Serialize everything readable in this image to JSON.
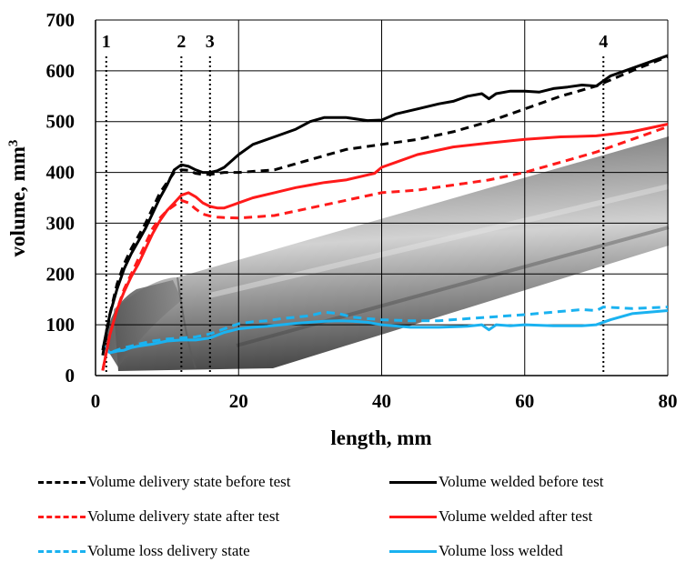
{
  "chart_data": {
    "type": "line",
    "title": "",
    "xlabel": "length, mm",
    "ylabel": "volume, mm",
    "ylabel_superscript": "3",
    "xlim": [
      0,
      80
    ],
    "ylim": [
      0,
      700
    ],
    "xticks": [
      "0",
      "20",
      "40",
      "60",
      "80"
    ],
    "yticks": [
      "0",
      "100",
      "200",
      "300",
      "400",
      "500",
      "600",
      "700"
    ],
    "grid": true,
    "markers": [
      {
        "label": "1",
        "x": 1.5
      },
      {
        "label": "2",
        "x": 12
      },
      {
        "label": "3",
        "x": 16
      },
      {
        "label": "4",
        "x": 71
      }
    ],
    "series": [
      {
        "name": "Volume delivery state before test",
        "color": "#000000",
        "style": "dashed",
        "x": [
          1,
          2,
          3,
          4,
          5,
          6,
          7,
          8,
          9,
          10,
          11,
          12,
          13,
          14,
          15,
          16,
          17,
          18,
          20,
          25,
          30,
          35,
          40,
          45,
          50,
          55,
          60,
          65,
          70,
          75,
          80
        ],
        "y": [
          40,
          120,
          180,
          220,
          250,
          275,
          300,
          330,
          360,
          380,
          400,
          405,
          404,
          398,
          396,
          396,
          398,
          400,
          400,
          405,
          425,
          445,
          455,
          465,
          480,
          500,
          525,
          550,
          570,
          600,
          628
        ]
      },
      {
        "name": "Volume welded before test",
        "color": "#000000",
        "style": "solid",
        "x": [
          1,
          2,
          3,
          4,
          5,
          6,
          7,
          8,
          9,
          10,
          11,
          12,
          13,
          14,
          15,
          16,
          17,
          18,
          20,
          22,
          25,
          28,
          30,
          32,
          35,
          38,
          40,
          42,
          45,
          48,
          50,
          52,
          54,
          55,
          56,
          58,
          60,
          62,
          64,
          66,
          68,
          70,
          72,
          74,
          76,
          78,
          80
        ],
        "y": [
          50,
          120,
          170,
          210,
          240,
          265,
          290,
          320,
          350,
          375,
          405,
          415,
          412,
          405,
          400,
          400,
          403,
          410,
          435,
          455,
          470,
          485,
          500,
          508,
          508,
          502,
          503,
          515,
          525,
          535,
          540,
          550,
          555,
          545,
          555,
          560,
          560,
          558,
          565,
          568,
          572,
          570,
          590,
          600,
          610,
          620,
          630
        ]
      },
      {
        "name": "Volume delivery state after test",
        "color": "#ff1a1a",
        "style": "dashed",
        "x": [
          1,
          2,
          3,
          4,
          5,
          6,
          7,
          8,
          9,
          10,
          11,
          12,
          13,
          14,
          15,
          16,
          17,
          18,
          20,
          25,
          30,
          35,
          40,
          45,
          50,
          55,
          60,
          65,
          70,
          75,
          80
        ],
        "y": [
          10,
          80,
          130,
          170,
          200,
          230,
          260,
          290,
          310,
          325,
          335,
          345,
          340,
          328,
          318,
          314,
          312,
          311,
          310,
          315,
          330,
          345,
          360,
          365,
          375,
          385,
          400,
          420,
          440,
          465,
          490
        ]
      },
      {
        "name": "Volume welded after test",
        "color": "#ff1a1a",
        "style": "solid",
        "x": [
          1,
          2,
          3,
          4,
          5,
          6,
          7,
          8,
          9,
          10,
          11,
          12,
          13,
          14,
          15,
          16,
          17,
          18,
          20,
          22,
          25,
          28,
          30,
          32,
          35,
          38,
          39,
          40,
          42,
          45,
          50,
          55,
          60,
          65,
          70,
          75,
          80
        ],
        "y": [
          10,
          80,
          130,
          165,
          195,
          220,
          250,
          280,
          305,
          325,
          340,
          355,
          360,
          352,
          340,
          333,
          330,
          330,
          340,
          350,
          360,
          370,
          375,
          380,
          385,
          395,
          398,
          410,
          420,
          435,
          450,
          458,
          465,
          470,
          472,
          480,
          495
        ]
      },
      {
        "name": "Volume loss delivery state",
        "color": "#1ab2f0",
        "style": "dashed",
        "x": [
          1,
          2,
          3,
          4,
          5,
          6,
          8,
          10,
          12,
          14,
          16,
          18,
          20,
          22,
          24,
          26,
          28,
          30,
          32,
          34,
          36,
          38,
          40,
          44,
          48,
          52,
          56,
          60,
          64,
          68,
          70,
          71,
          75,
          80
        ],
        "y": [
          60,
          45,
          50,
          55,
          58,
          62,
          68,
          72,
          74,
          76,
          82,
          92,
          102,
          106,
          108,
          112,
          115,
          118,
          125,
          122,
          115,
          112,
          110,
          108,
          108,
          112,
          116,
          120,
          125,
          130,
          128,
          135,
          132,
          135
        ]
      },
      {
        "name": "Volume loss welded",
        "color": "#1ab2f0",
        "style": "solid",
        "x": [
          1,
          2,
          3,
          4,
          5,
          6,
          8,
          10,
          12,
          14,
          16,
          18,
          20,
          22,
          24,
          26,
          28,
          30,
          32,
          34,
          36,
          38,
          40,
          44,
          48,
          52,
          54,
          55,
          56,
          58,
          60,
          64,
          68,
          70,
          72,
          75,
          80
        ],
        "y": [
          60,
          45,
          48,
          50,
          55,
          58,
          62,
          68,
          70,
          70,
          74,
          85,
          92,
          95,
          97,
          100,
          103,
          105,
          107,
          108,
          107,
          105,
          100,
          95,
          95,
          97,
          100,
          90,
          100,
          98,
          100,
          98,
          98,
          100,
          110,
          122,
          128
        ]
      }
    ]
  }
}
